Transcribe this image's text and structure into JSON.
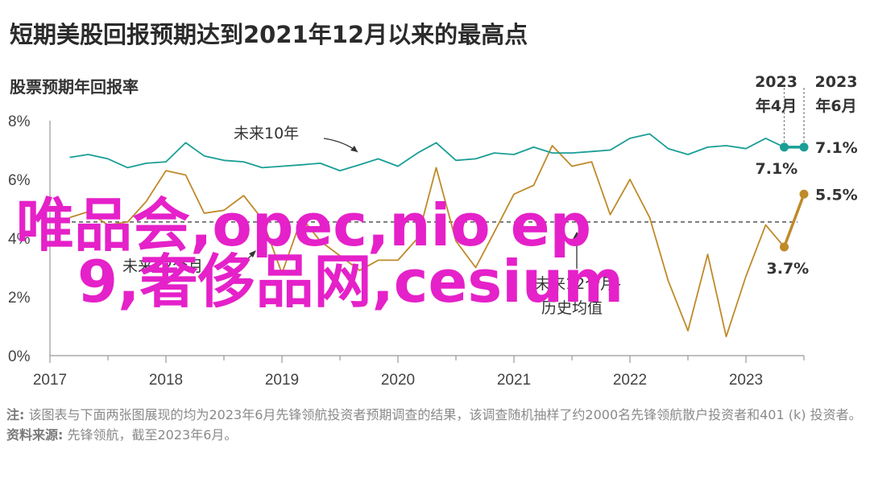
{
  "title": "短期美股回报预期达到2021年12月以来的最高点",
  "subtitle": "股票预期年回报率",
  "watermark": {
    "line1": "唯品会,opec,nio ep",
    "line2": "9,奢侈品网,cesium"
  },
  "colors": {
    "teal": "#1a9e96",
    "gold": "#bf8a2a",
    "dash": "#555555",
    "axis": "#999999",
    "watermark": "#e521c9"
  },
  "notes": {
    "note_label": "注:",
    "note_text": "该图表与下面两张图展现的均为2023年6月先锋领航投资者预期调查的结果，该调查随机抽样了约2000名先锋领航散户投资者和401 (k) 投资者。",
    "source_label": "资料来源:",
    "source_text": "先锋领航，截至2023年6月。"
  },
  "chart_data": {
    "type": "line",
    "title": "短期美股回报预期达到2021年12月以来的最高点",
    "ylabel": "股票预期年回报率",
    "ylim": [
      0,
      8
    ],
    "yticks": [
      "0%",
      "2%",
      "4%",
      "6%",
      "8%"
    ],
    "xlim": [
      2017.0,
      2023.5
    ],
    "xticks": [
      "2017",
      "2018",
      "2019",
      "2020",
      "2021",
      "2022",
      "2023"
    ],
    "series": [
      {
        "name": "未来10年",
        "color": "#1a9e96",
        "x": [
          2017.17,
          2017.33,
          2017.5,
          2017.67,
          2017.83,
          2018.0,
          2018.17,
          2018.33,
          2018.5,
          2018.67,
          2018.83,
          2019.0,
          2019.17,
          2019.33,
          2019.5,
          2019.67,
          2019.83,
          2020.0,
          2020.17,
          2020.33,
          2020.5,
          2020.67,
          2020.83,
          2021.0,
          2021.17,
          2021.33,
          2021.5,
          2021.67,
          2021.83,
          2022.0,
          2022.17,
          2022.33,
          2022.5,
          2022.67,
          2022.83,
          2023.0,
          2023.17,
          2023.33
        ],
        "values": [
          6.75,
          6.85,
          6.7,
          6.4,
          6.55,
          6.6,
          7.25,
          6.8,
          6.65,
          6.6,
          6.4,
          6.45,
          6.5,
          6.55,
          6.3,
          6.5,
          6.7,
          6.45,
          6.9,
          7.25,
          6.65,
          6.7,
          6.9,
          6.85,
          7.1,
          6.9,
          6.9,
          6.95,
          7.0,
          7.4,
          7.55,
          7.05,
          6.85,
          7.1,
          7.15,
          7.05,
          7.4,
          7.1
        ]
      },
      {
        "name": "未来12个月",
        "color": "#bf8a2a",
        "x": [
          2017.17,
          2017.33,
          2017.5,
          2017.67,
          2017.83,
          2018.0,
          2018.17,
          2018.33,
          2018.5,
          2018.67,
          2018.83,
          2019.0,
          2019.17,
          2019.33,
          2019.5,
          2019.67,
          2019.83,
          2020.0,
          2020.17,
          2020.33,
          2020.5,
          2020.67,
          2020.83,
          2021.0,
          2021.17,
          2021.33,
          2021.5,
          2021.67,
          2021.83,
          2022.0,
          2022.17,
          2022.33,
          2022.5,
          2022.67,
          2022.83,
          2023.0,
          2023.17,
          2023.33
        ],
        "values": [
          4.7,
          4.9,
          4.45,
          4.55,
          5.25,
          6.3,
          6.15,
          4.85,
          4.95,
          5.45,
          4.65,
          2.8,
          4.7,
          3.9,
          3.4,
          2.9,
          3.25,
          3.25,
          4.0,
          6.4,
          3.9,
          3.0,
          4.2,
          5.5,
          5.8,
          7.15,
          6.45,
          6.6,
          4.8,
          6.0,
          4.7,
          2.55,
          0.85,
          3.45,
          0.65,
          2.7,
          4.45,
          3.7
        ]
      },
      {
        "name": "未来12个月-历史均值",
        "color": "#555555",
        "x": [
          2017.0,
          2023.5
        ],
        "values": [
          4.55,
          4.55
        ]
      }
    ],
    "highlight": {
      "x_start": 2023.33,
      "x_end": 2023.5,
      "label_start": [
        "2023",
        "年4月"
      ],
      "label_end": [
        "2023",
        "年6月"
      ],
      "ten_year": [
        7.1,
        7.1
      ],
      "twelve_month": [
        3.7,
        5.5
      ],
      "value_labels": {
        "ten_year_start": "7.1%",
        "ten_year_end": "7.1%",
        "twelve_month_start": "3.7%",
        "twelve_month_end": "5.5%"
      }
    },
    "annotations": [
      {
        "text": "未来10年"
      },
      {
        "text": "未来12个月"
      },
      {
        "text": "未来12个月-"
      },
      {
        "text": "历史均值"
      }
    ],
    "grid": false,
    "legend": "none"
  }
}
